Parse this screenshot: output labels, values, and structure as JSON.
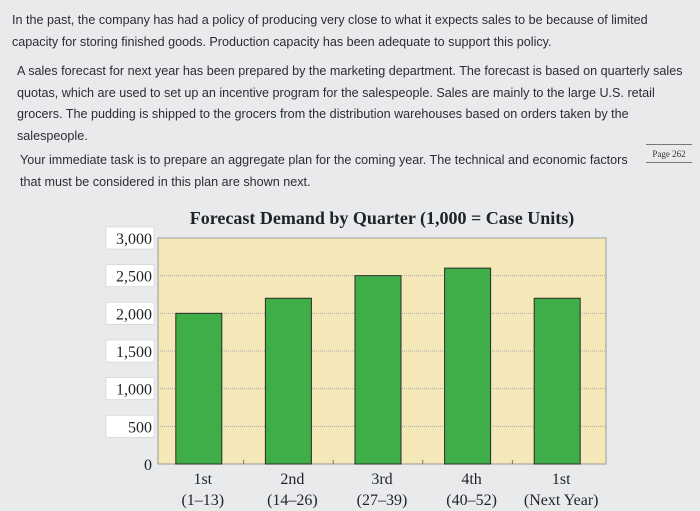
{
  "document": {
    "paragraphs": [
      "In the past, the company has had a policy of producing very close to what it expects sales to be because of limited capacity for storing finished goods. Production capacity has been adequate to support this policy.",
      "A sales forecast for next year has been prepared by the marketing department. The forecast is based on quarterly sales quotas, which are used to set up an incentive program for the salespeople. Sales are mainly to the large U.S. retail grocers. The pudding is shipped to the grocers from the distribution warehouses based on orders taken by the salespeople.",
      "Your immediate task is to prepare an aggregate plan for the coming year. The technical and economic factors that must be considered in this plan are shown next."
    ],
    "page_reference": "Page 262"
  },
  "chart_data": {
    "type": "bar",
    "title": "Forecast Demand by Quarter (1,000 = Case Units)",
    "categories": [
      {
        "line1": "1st",
        "line2": "(1–13)"
      },
      {
        "line1": "2nd",
        "line2": "(14–26)"
      },
      {
        "line1": "3rd",
        "line2": "(27–39)"
      },
      {
        "line1": "4th",
        "line2": "(40–52)"
      },
      {
        "line1": "1st",
        "line2": "(Next Year)"
      }
    ],
    "values": [
      2000,
      2200,
      2500,
      2600,
      2200
    ],
    "yticks": [
      "3,000",
      "2,500",
      "2,000",
      "1,500",
      "1,000",
      "500",
      "0"
    ],
    "ytick_values": [
      3000,
      2500,
      2000,
      1500,
      1000,
      500,
      0
    ],
    "ylim": [
      0,
      3000
    ],
    "grid": true,
    "colors": {
      "bar": "#3fae49",
      "bar_edge": "#2a2a2a",
      "plot_bg": "#f5e8b8",
      "grid": "#a8a8a8"
    }
  }
}
